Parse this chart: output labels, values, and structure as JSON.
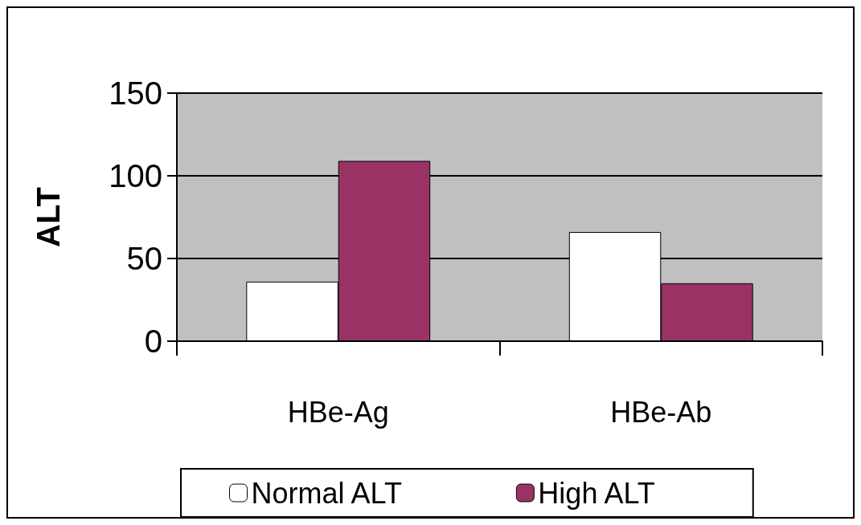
{
  "chart_data": {
    "type": "bar",
    "ylabel": "ALT",
    "categories": [
      "HBe-Ag",
      "HBe-Ab"
    ],
    "series": [
      {
        "name": "Normal ALT",
        "color": "#ffffff",
        "values": [
          36,
          66
        ]
      },
      {
        "name": "High ALT",
        "color": "#993366",
        "values": [
          109,
          35
        ]
      }
    ],
    "ylim": [
      0,
      150
    ],
    "yticks": [
      0,
      50,
      100,
      150
    ],
    "grid": "y",
    "legend": "bottom"
  }
}
